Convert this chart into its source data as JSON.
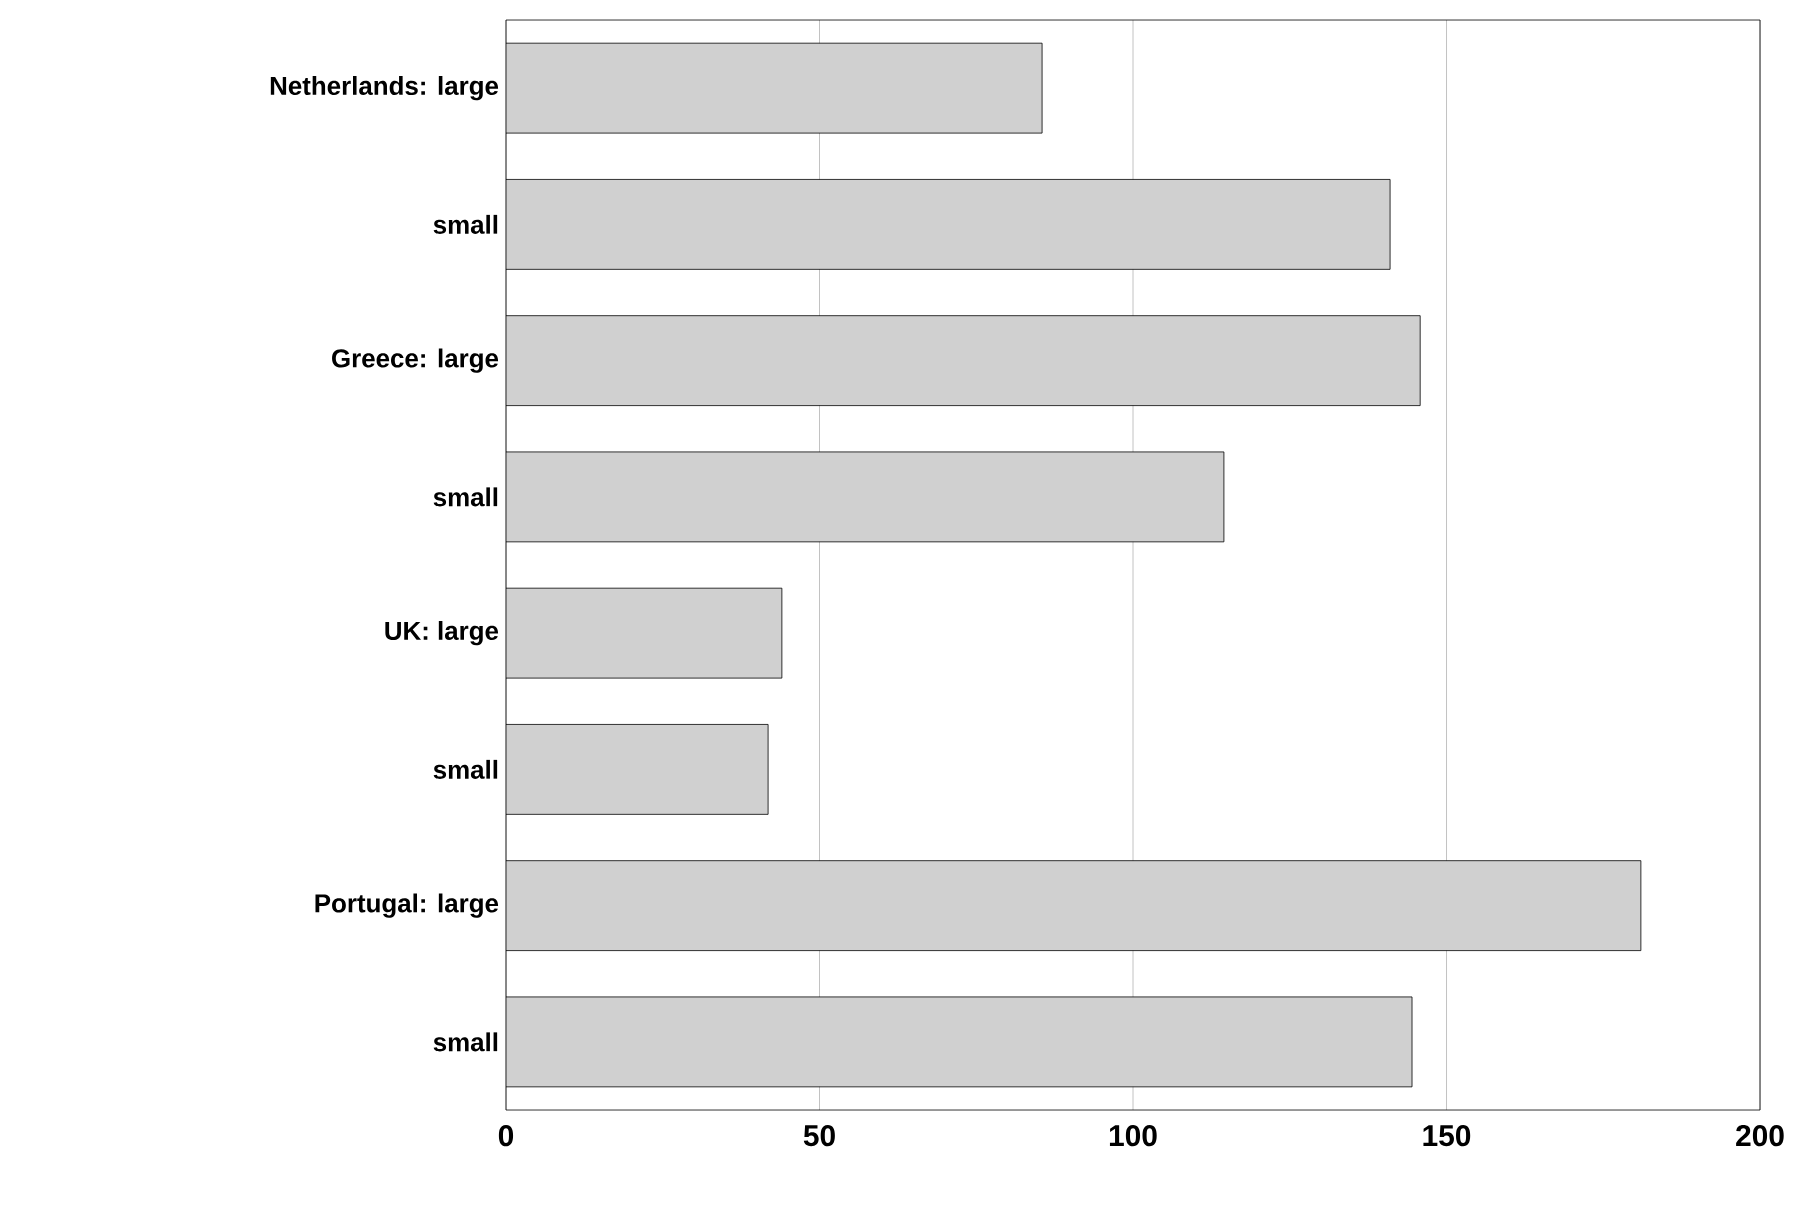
{
  "chart_data": {
    "type": "bar",
    "orientation": "horizontal",
    "categories": [
      "Netherlands: large",
      "small",
      "Greece: large",
      "small",
      "UK: large",
      "small",
      "Portugal: large",
      "small"
    ],
    "values": [
      85.5,
      141,
      145.8,
      114.5,
      44,
      41.8,
      181,
      144.5
    ],
    "color": "#d0d0d0",
    "xlim": [
      0,
      200
    ],
    "xticks": [
      0,
      50,
      100,
      150,
      200
    ],
    "grid": "x"
  }
}
